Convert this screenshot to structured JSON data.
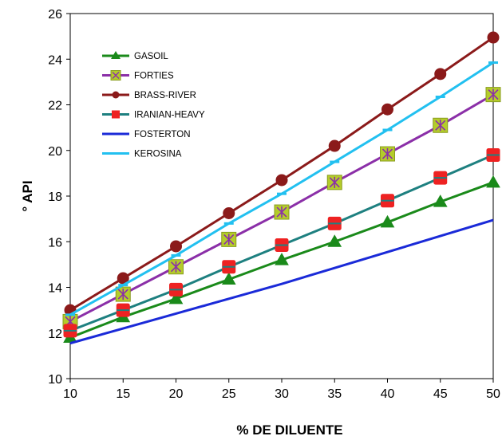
{
  "chart_data": {
    "type": "line",
    "title": "",
    "xlabel": "% DE DILUENTE",
    "ylabel": "° API",
    "x": [
      10,
      15,
      20,
      25,
      30,
      35,
      40,
      45,
      50
    ],
    "xlim": [
      10,
      50
    ],
    "ylim": [
      10,
      26
    ],
    "xticks": [
      "10",
      "15",
      "20",
      "25",
      "30",
      "35",
      "40",
      "45",
      "50"
    ],
    "yticks": [
      "10",
      "12",
      "14",
      "16",
      "18",
      "20",
      "22",
      "24",
      "26"
    ],
    "grid": false,
    "legend_position": "top-left",
    "series": [
      {
        "name": "GASOIL",
        "color": "#1a8a1a",
        "marker": "triangle",
        "values": [
          11.8,
          12.7,
          13.5,
          14.35,
          15.2,
          16.0,
          16.85,
          17.75,
          18.6
        ]
      },
      {
        "name": "FORTIES",
        "color": "#8b2fa8",
        "marker": "square-star",
        "values": [
          12.5,
          13.7,
          14.9,
          16.1,
          17.3,
          18.6,
          19.85,
          21.1,
          22.45
        ]
      },
      {
        "name": "BRASS-RIVER",
        "color": "#8b1a1a",
        "marker": "circle",
        "values": [
          13.0,
          14.4,
          15.8,
          17.25,
          18.7,
          20.2,
          21.8,
          23.35,
          24.95
        ]
      },
      {
        "name": "IRANIAN-HEAVY",
        "color": "#1e8080",
        "marker": "square",
        "values": [
          12.1,
          13.0,
          13.9,
          14.9,
          15.85,
          16.8,
          17.8,
          18.8,
          19.8
        ]
      },
      {
        "name": "FOSTERTON",
        "color": "#1a2ad8",
        "marker": "none",
        "values": [
          11.55,
          12.2,
          12.85,
          13.5,
          14.15,
          14.85,
          15.55,
          16.25,
          16.95
        ]
      },
      {
        "name": "KEROSINA",
        "color": "#22c0f0",
        "marker": "dash",
        "values": [
          12.8,
          14.1,
          15.4,
          16.8,
          18.1,
          19.5,
          20.9,
          22.35,
          23.85
        ]
      }
    ]
  }
}
